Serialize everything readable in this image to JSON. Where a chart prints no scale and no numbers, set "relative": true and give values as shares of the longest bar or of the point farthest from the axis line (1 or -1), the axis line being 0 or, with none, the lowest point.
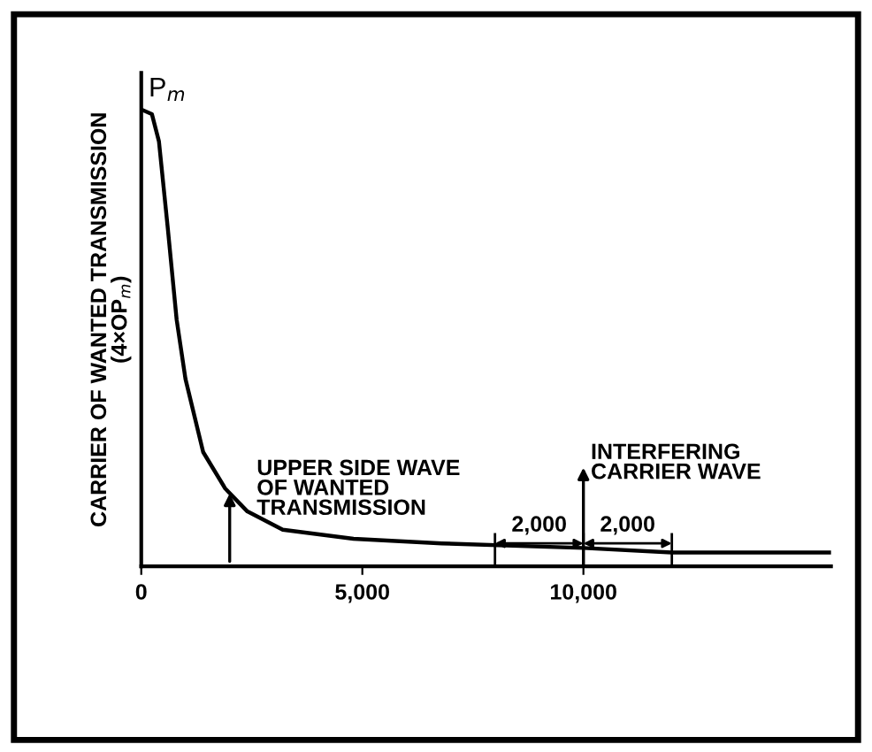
{
  "chart_data": {
    "type": "line",
    "relative": true,
    "ylabel": "CARRIER OF WANTED TRANSMISSION\n(4×OP$_{m}$)",
    "x": [
      0,
      240,
      400,
      600,
      800,
      1000,
      1400,
      1900,
      2400,
      3200,
      4800,
      6800,
      10000,
      12000,
      15600
    ],
    "series": [
      {
        "color": "#000000",
        "values": [
          1.0,
          0.99,
          0.93,
          0.74,
          0.54,
          0.41,
          0.25,
          0.17,
          0.12,
          0.08,
          0.06,
          0.05,
          0.04,
          0.03,
          0.03
        ]
      }
    ],
    "xlim": [
      0,
      15600
    ],
    "xticks": [
      {
        "value": 0,
        "label": "0"
      },
      {
        "value": 5000,
        "label": "5,000"
      },
      {
        "value": 10000,
        "label": "10,000"
      }
    ],
    "annotations": [
      {
        "text": "P$_{m}$",
        "x": 0,
        "y": 1.0
      },
      {
        "text": "UPPER SIDE WAVE\nOF WANTED\nTRANSMISSION",
        "x": 2000,
        "y": 0.17
      },
      {
        "text": "2,000",
        "x": 9000,
        "y": 0.05
      },
      {
        "text": "2,000",
        "x": 11000,
        "y": 0.05
      },
      "INTERFERING\nCARRIER WAVE"
    ],
    "grid": false,
    "legend": false,
    "marker": "none",
    "line_style": "solid"
  }
}
